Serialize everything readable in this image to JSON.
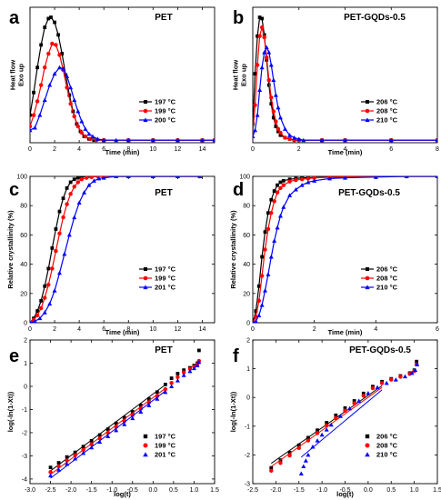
{
  "chart_data": [
    {
      "type": "line",
      "panel": "a",
      "title": "PET",
      "xlabel": "Time (min)",
      "ylabel": "Heat flow\nExo up",
      "xlim": [
        0,
        15
      ],
      "ylim": [
        0,
        1.08
      ],
      "xticks": [
        0,
        2,
        4,
        6,
        8,
        10,
        12,
        14
      ],
      "yticks": [],
      "legend_position": "right",
      "series": [
        {
          "name": "197 °C",
          "color": "#000000",
          "marker": "square",
          "x": [
            0.0,
            0.3,
            0.6,
            0.9,
            1.2,
            1.5,
            1.7,
            2.0,
            2.3,
            2.6,
            2.9,
            3.2,
            3.5,
            3.8,
            4.1,
            4.4,
            4.8,
            5.2,
            6.0,
            8.0,
            10.0,
            12.0,
            14.0,
            15.0
          ],
          "y": [
            0.22,
            0.4,
            0.6,
            0.78,
            0.92,
            0.99,
            1.0,
            0.96,
            0.86,
            0.71,
            0.54,
            0.38,
            0.25,
            0.15,
            0.09,
            0.05,
            0.03,
            0.02,
            0.02,
            0.02,
            0.02,
            0.02,
            0.02,
            0.02
          ]
        },
        {
          "name": "199 °C",
          "color": "#ff0000",
          "marker": "circle",
          "x": [
            0.0,
            0.3,
            0.6,
            0.9,
            1.2,
            1.5,
            1.8,
            2.1,
            2.4,
            2.7,
            3.0,
            3.3,
            3.6,
            3.9,
            4.2,
            4.5,
            4.9,
            5.4,
            6.0,
            8.0,
            10.0,
            12.0,
            14.0,
            15.0
          ],
          "y": [
            0.13,
            0.22,
            0.33,
            0.46,
            0.6,
            0.71,
            0.79,
            0.78,
            0.7,
            0.58,
            0.44,
            0.31,
            0.21,
            0.13,
            0.08,
            0.05,
            0.03,
            0.02,
            0.02,
            0.02,
            0.02,
            0.02,
            0.02,
            0.02
          ]
        },
        {
          "name": "200 °C",
          "color": "#0000ff",
          "marker": "triangle",
          "x": [
            0.0,
            0.4,
            0.8,
            1.2,
            1.6,
            2.0,
            2.4,
            2.7,
            3.0,
            3.3,
            3.6,
            3.9,
            4.2,
            4.5,
            4.8,
            5.1,
            5.5,
            6.0,
            7.0,
            8.0,
            10.0,
            12.0,
            14.0,
            15.0
          ],
          "y": [
            0.1,
            0.12,
            0.22,
            0.34,
            0.46,
            0.55,
            0.6,
            0.59,
            0.53,
            0.44,
            0.34,
            0.25,
            0.17,
            0.11,
            0.07,
            0.05,
            0.03,
            0.02,
            0.02,
            0.02,
            0.02,
            0.02,
            0.02,
            0.02
          ]
        }
      ]
    },
    {
      "type": "line",
      "panel": "b",
      "title": "PET-GQDs-0.5",
      "xlabel": "Time (min)",
      "ylabel": "Heat flow\nExo up",
      "xlim": [
        0,
        8
      ],
      "ylim": [
        0,
        1.08
      ],
      "xticks": [
        0,
        2,
        4,
        6,
        8
      ],
      "yticks": [],
      "legend_position": "right",
      "series": [
        {
          "name": "206 °C",
          "color": "#000000",
          "marker": "square",
          "x": [
            0.0,
            0.1,
            0.2,
            0.3,
            0.4,
            0.5,
            0.6,
            0.7,
            0.8,
            0.9,
            1.0,
            1.1,
            1.2,
            1.4,
            1.6,
            1.8,
            2.0,
            3.0,
            4.0,
            6.0,
            8.0
          ],
          "y": [
            0.15,
            0.55,
            0.85,
            1.0,
            0.99,
            0.86,
            0.66,
            0.46,
            0.31,
            0.2,
            0.13,
            0.09,
            0.06,
            0.04,
            0.03,
            0.02,
            0.02,
            0.02,
            0.02,
            0.02,
            0.02
          ]
        },
        {
          "name": "208 °C",
          "color": "#ff0000",
          "marker": "circle",
          "x": [
            0.0,
            0.1,
            0.2,
            0.3,
            0.4,
            0.5,
            0.6,
            0.7,
            0.8,
            0.9,
            1.0,
            1.1,
            1.2,
            1.4,
            1.6,
            1.8,
            2.0,
            3.0,
            4.0,
            6.0,
            8.0
          ],
          "y": [
            0.08,
            0.3,
            0.62,
            0.85,
            0.92,
            0.84,
            0.68,
            0.5,
            0.36,
            0.25,
            0.17,
            0.11,
            0.08,
            0.04,
            0.03,
            0.02,
            0.02,
            0.02,
            0.02,
            0.02,
            0.02
          ]
        },
        {
          "name": "210 °C",
          "color": "#0000ff",
          "marker": "triangle",
          "x": [
            0.0,
            0.1,
            0.2,
            0.3,
            0.4,
            0.5,
            0.6,
            0.7,
            0.8,
            0.9,
            1.0,
            1.1,
            1.2,
            1.4,
            1.6,
            1.8,
            2.0,
            2.2,
            3.0,
            4.0,
            6.0,
            8.0
          ],
          "y": [
            0.05,
            0.1,
            0.22,
            0.42,
            0.6,
            0.72,
            0.76,
            0.72,
            0.62,
            0.5,
            0.38,
            0.28,
            0.2,
            0.11,
            0.06,
            0.04,
            0.03,
            0.02,
            0.02,
            0.02,
            0.02,
            0.02
          ]
        }
      ]
    },
    {
      "type": "line",
      "panel": "c",
      "title": "PET",
      "xlabel": "Time (min)",
      "ylabel": "Relative crystallinity (%)",
      "xlim": [
        0,
        15
      ],
      "ylim": [
        0,
        100
      ],
      "xticks": [
        0,
        2,
        4,
        6,
        8,
        10,
        12,
        14
      ],
      "yticks": [
        0,
        20,
        40,
        60,
        80,
        100
      ],
      "legend_position": "right",
      "series": [
        {
          "name": "197 °C",
          "color": "#000000",
          "marker": "square",
          "x": [
            0.0,
            0.3,
            0.6,
            0.9,
            1.2,
            1.5,
            1.8,
            2.1,
            2.4,
            2.7,
            3.0,
            3.3,
            3.6,
            3.9,
            4.2,
            4.6,
            5.0,
            6.0,
            8.0,
            10.0,
            12.0,
            13.8
          ],
          "y": [
            0,
            3,
            8,
            15,
            25,
            37,
            51,
            64,
            76,
            85,
            92,
            96,
            98,
            99,
            99.5,
            100,
            100,
            100,
            100,
            100,
            100,
            100
          ]
        },
        {
          "name": "199 °C",
          "color": "#ff0000",
          "marker": "circle",
          "x": [
            0.0,
            0.3,
            0.6,
            0.9,
            1.2,
            1.5,
            1.8,
            2.1,
            2.4,
            2.7,
            3.0,
            3.3,
            3.6,
            3.9,
            4.2,
            4.6,
            5.0,
            5.5,
            6.0,
            8.0,
            10.0,
            12.0,
            13.8
          ],
          "y": [
            0,
            2,
            5,
            10,
            17,
            26,
            37,
            49,
            61,
            72,
            81,
            88,
            93,
            96,
            98,
            99,
            99.5,
            100,
            100,
            100,
            100,
            100,
            100
          ]
        },
        {
          "name": "201 °C",
          "color": "#0000ff",
          "marker": "triangle",
          "x": [
            0.0,
            0.4,
            0.8,
            1.2,
            1.6,
            2.0,
            2.4,
            2.8,
            3.2,
            3.6,
            4.0,
            4.4,
            4.8,
            5.2,
            5.6,
            6.0,
            7.0,
            8.0,
            10.0,
            12.0,
            13.8
          ],
          "y": [
            0,
            1,
            3,
            7,
            13,
            22,
            34,
            47,
            60,
            72,
            82,
            89,
            94,
            97,
            98.5,
            99,
            100,
            100,
            100,
            100,
            100
          ]
        }
      ]
    },
    {
      "type": "line",
      "panel": "d",
      "title": "PET-GQDs-0.5",
      "xlabel": "Time (min)",
      "ylabel": "Relative crystallinity (%)",
      "xlim": [
        0,
        6
      ],
      "ylim": [
        0,
        100
      ],
      "xticks": [
        0,
        2,
        4,
        6
      ],
      "yticks": [
        0,
        20,
        40,
        60,
        80,
        100
      ],
      "legend_position": "right",
      "series": [
        {
          "name": "206 °C",
          "color": "#000000",
          "marker": "square",
          "x": [
            0.0,
            0.1,
            0.2,
            0.3,
            0.4,
            0.5,
            0.6,
            0.7,
            0.8,
            0.9,
            1.0,
            1.2,
            1.4,
            1.6,
            1.8,
            2.0,
            2.5,
            3.0,
            4.0,
            5.0,
            6.0
          ],
          "y": [
            0,
            8,
            25,
            45,
            62,
            75,
            84,
            90,
            94,
            96,
            97,
            98,
            98.5,
            99,
            99,
            99.2,
            99.5,
            99.7,
            100,
            100,
            100
          ]
        },
        {
          "name": "208 °C",
          "color": "#ff0000",
          "marker": "circle",
          "x": [
            0.0,
            0.1,
            0.2,
            0.3,
            0.4,
            0.5,
            0.6,
            0.7,
            0.8,
            0.9,
            1.0,
            1.2,
            1.4,
            1.6,
            1.8,
            2.0,
            2.5,
            3.0,
            4.0,
            5.0,
            6.0
          ],
          "y": [
            0,
            4,
            15,
            32,
            50,
            64,
            75,
            83,
            89,
            92,
            94,
            96.5,
            97.5,
            98,
            98.5,
            99,
            99.4,
            99.6,
            100,
            100,
            100
          ]
        },
        {
          "name": "210 °C",
          "color": "#0000ff",
          "marker": "triangle",
          "x": [
            0.0,
            0.1,
            0.2,
            0.3,
            0.4,
            0.5,
            0.6,
            0.7,
            0.8,
            0.9,
            1.0,
            1.2,
            1.4,
            1.6,
            1.8,
            2.0,
            2.5,
            3.0,
            4.0,
            5.0,
            6.0
          ],
          "y": [
            0,
            1,
            5,
            12,
            22,
            33,
            45,
            56,
            65,
            73,
            79,
            87,
            91,
            94,
            96,
            97,
            98.5,
            99,
            99.5,
            100,
            100
          ]
        }
      ]
    },
    {
      "type": "scatter",
      "panel": "e",
      "title": "PET",
      "xlabel": "log(t)",
      "ylabel": "log(-ln(1-Xt))",
      "xlim": [
        -3.0,
        1.5
      ],
      "ylim": [
        -4.2,
        2.0
      ],
      "xticks": [
        -3.0,
        -2.5,
        -2.0,
        -1.5,
        -1.0,
        -0.5,
        0.0,
        0.5,
        1.0,
        1.5
      ],
      "yticks": [
        -4,
        -3,
        -2,
        -1,
        0,
        1,
        2
      ],
      "legend_position": "right",
      "series": [
        {
          "name": "197 °C",
          "color": "#000000",
          "marker": "square",
          "x": [
            -2.5,
            -2.3,
            -2.1,
            -1.9,
            -1.7,
            -1.5,
            -1.3,
            -1.1,
            -0.9,
            -0.7,
            -0.5,
            -0.3,
            -0.1,
            0.1,
            0.3,
            0.45,
            0.6,
            0.75,
            0.9,
            1.0,
            1.08,
            1.12
          ],
          "y": [
            -3.5,
            -3.3,
            -3.05,
            -2.85,
            -2.6,
            -2.35,
            -2.1,
            -1.85,
            -1.6,
            -1.35,
            -1.1,
            -0.82,
            -0.55,
            -0.25,
            0.08,
            0.35,
            0.55,
            0.7,
            0.8,
            0.9,
            1.0,
            1.55
          ]
        },
        {
          "name": "199 °C",
          "color": "#ff0000",
          "marker": "circle",
          "x": [
            -2.5,
            -2.3,
            -2.1,
            -1.9,
            -1.7,
            -1.5,
            -1.3,
            -1.1,
            -0.9,
            -0.7,
            -0.5,
            -0.3,
            -0.1,
            0.1,
            0.3,
            0.45,
            0.6,
            0.75,
            0.9,
            1.0,
            1.08,
            1.12
          ],
          "y": [
            -3.7,
            -3.45,
            -3.2,
            -2.98,
            -2.74,
            -2.5,
            -2.25,
            -2.0,
            -1.75,
            -1.5,
            -1.24,
            -0.97,
            -0.7,
            -0.42,
            -0.12,
            0.15,
            0.4,
            0.6,
            0.75,
            0.85,
            0.95,
            1.1
          ]
        },
        {
          "name": "201 °C",
          "color": "#0000ff",
          "marker": "triangle",
          "x": [
            -2.5,
            -2.3,
            -2.1,
            -1.9,
            -1.7,
            -1.5,
            -1.3,
            -1.1,
            -0.9,
            -0.7,
            -0.5,
            -0.3,
            -0.1,
            0.1,
            0.3,
            0.45,
            0.6,
            0.75,
            0.9,
            1.0,
            1.08,
            1.12
          ],
          "y": [
            -3.85,
            -3.6,
            -3.35,
            -3.12,
            -2.88,
            -2.64,
            -2.4,
            -2.16,
            -1.9,
            -1.64,
            -1.38,
            -1.1,
            -0.82,
            -0.54,
            -0.25,
            0.0,
            0.25,
            0.48,
            0.65,
            0.78,
            0.9,
            1.05
          ]
        }
      ]
    },
    {
      "type": "scatter",
      "panel": "f",
      "title": "PET-GQDs-0.5",
      "xlabel": "log(t)",
      "ylabel": "log(-ln(1-Xt))",
      "xlim": [
        -2.5,
        1.5
      ],
      "ylim": [
        -3.0,
        2.0
      ],
      "xticks": [
        -2.5,
        -2.0,
        -1.5,
        -1.0,
        -0.5,
        0.0,
        0.5,
        1.0,
        1.5
      ],
      "yticks": [
        -3,
        -2,
        -1,
        0,
        1,
        2
      ],
      "legend_position": "right",
      "series": [
        {
          "name": "206 °C",
          "color": "#000000",
          "marker": "square",
          "x": [
            -2.1,
            -1.9,
            -1.7,
            -1.5,
            -1.3,
            -1.1,
            -0.9,
            -0.7,
            -0.5,
            -0.3,
            -0.1,
            0.1,
            0.3,
            0.5,
            0.7,
            0.9,
            1.0,
            1.05
          ],
          "y": [
            -2.45,
            -2.18,
            -1.92,
            -1.66,
            -1.4,
            -1.14,
            -0.88,
            -0.62,
            -0.37,
            -0.12,
            0.14,
            0.38,
            0.55,
            0.65,
            0.75,
            0.85,
            0.95,
            1.25
          ]
        },
        {
          "name": "208 °C",
          "color": "#ff0000",
          "marker": "circle",
          "x": [
            -2.1,
            -1.9,
            -1.7,
            -1.5,
            -1.3,
            -1.1,
            -0.9,
            -0.7,
            -0.5,
            -0.3,
            -0.1,
            0.1,
            0.3,
            0.5,
            0.7,
            0.9,
            1.0,
            1.05
          ],
          "y": [
            -2.55,
            -2.28,
            -2.02,
            -1.76,
            -1.5,
            -1.24,
            -0.98,
            -0.72,
            -0.46,
            -0.2,
            0.06,
            0.32,
            0.5,
            0.62,
            0.72,
            0.82,
            0.92,
            1.15
          ]
        },
        {
          "name": "210 °C",
          "color": "#0000ff",
          "marker": "triangle",
          "x": [
            -1.45,
            -1.4,
            -1.35,
            -1.3,
            -1.2,
            -1.1,
            -1.0,
            -0.9,
            -0.8,
            -0.6,
            -0.4,
            -0.2,
            0.0,
            0.2,
            0.4,
            0.6,
            0.8,
            0.95,
            1.02,
            1.06
          ],
          "y": [
            -2.65,
            -2.4,
            -2.2,
            -2.0,
            -1.72,
            -1.5,
            -1.3,
            -1.12,
            -0.95,
            -0.65,
            -0.38,
            -0.12,
            0.15,
            0.35,
            0.5,
            0.62,
            0.73,
            0.85,
            0.95,
            1.15
          ]
        }
      ]
    }
  ]
}
